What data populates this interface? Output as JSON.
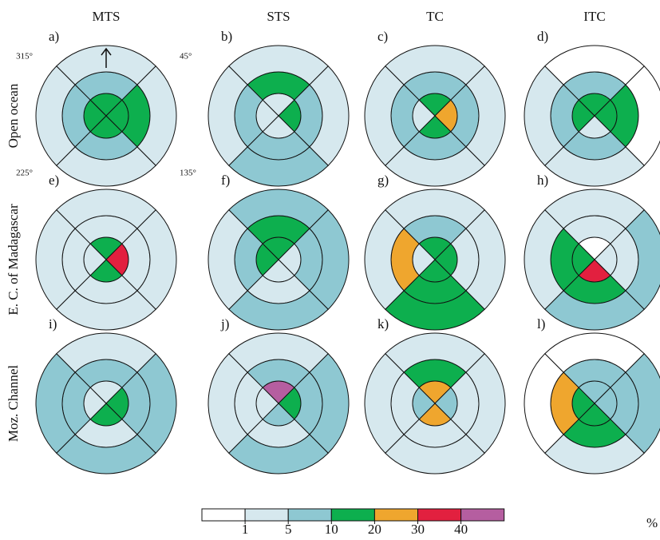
{
  "chart_data": {
    "type": "polar-sectors",
    "columns": [
      "MTS",
      "STS",
      "TC",
      "ITC"
    ],
    "rows": [
      "Open ocean",
      "E. C. of Madagascar",
      "Moz. Channel"
    ],
    "compass_labels": [
      "315°",
      "45°",
      "225°",
      "135°"
    ],
    "panels": [
      {
        "label": "a)",
        "rings": [
          [
            3,
            3,
            3,
            3
          ],
          [
            2,
            3,
            2,
            2
          ],
          [
            1,
            1,
            1,
            1
          ]
        ]
      },
      {
        "label": "b)",
        "rings": [
          [
            1,
            3,
            1,
            1
          ],
          [
            3,
            2,
            2,
            2
          ],
          [
            1,
            1,
            2,
            1
          ]
        ]
      },
      {
        "label": "c)",
        "rings": [
          [
            3,
            4,
            3,
            1
          ],
          [
            2,
            2,
            2,
            2
          ],
          [
            1,
            1,
            1,
            1
          ]
        ]
      },
      {
        "label": "d)",
        "rings": [
          [
            3,
            3,
            1,
            3
          ],
          [
            2,
            3,
            2,
            2
          ],
          [
            0,
            0,
            1,
            1
          ]
        ]
      },
      {
        "label": "e)",
        "rings": [
          [
            3,
            5,
            3,
            1
          ],
          [
            1,
            1,
            1,
            1
          ],
          [
            1,
            1,
            1,
            1
          ]
        ]
      },
      {
        "label": "f)",
        "rings": [
          [
            3,
            1,
            1,
            3
          ],
          [
            3,
            2,
            1,
            2
          ],
          [
            2,
            2,
            2,
            1
          ]
        ]
      },
      {
        "label": "g)",
        "rings": [
          [
            3,
            3,
            3,
            1
          ],
          [
            2,
            1,
            3,
            4
          ],
          [
            1,
            1,
            3,
            1
          ]
        ]
      },
      {
        "label": "h)",
        "rings": [
          [
            0,
            1,
            5,
            3
          ],
          [
            1,
            1,
            3,
            3
          ],
          [
            1,
            2,
            2,
            1
          ]
        ]
      },
      {
        "label": "i)",
        "rings": [
          [
            1,
            3,
            3,
            1
          ],
          [
            2,
            2,
            1,
            2
          ],
          [
            1,
            2,
            2,
            2
          ]
        ]
      },
      {
        "label": "j)",
        "rings": [
          [
            6,
            3,
            2,
            1
          ],
          [
            2,
            2,
            1,
            1
          ],
          [
            1,
            2,
            2,
            1
          ]
        ]
      },
      {
        "label": "k)",
        "rings": [
          [
            4,
            2,
            4,
            2
          ],
          [
            3,
            1,
            1,
            1
          ],
          [
            1,
            1,
            1,
            1
          ]
        ]
      },
      {
        "label": "l)",
        "rings": [
          [
            2,
            2,
            3,
            3
          ],
          [
            2,
            2,
            3,
            4
          ],
          [
            0,
            2,
            1,
            0
          ]
        ]
      }
    ],
    "colorbar": {
      "colors": [
        "#ffffff",
        "#d6e8ee",
        "#8ec8d2",
        "#0daf4e",
        "#efa62e",
        "#e2203f",
        "#b55ea0"
      ],
      "ticks": [
        1,
        5,
        10,
        20,
        30,
        40
      ],
      "label": "%"
    }
  }
}
